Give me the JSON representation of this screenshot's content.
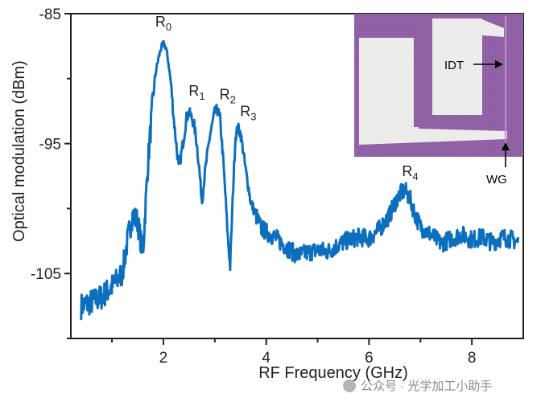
{
  "chart_data": {
    "type": "line",
    "title": "",
    "xlabel": "RF Frequency (GHz)",
    "ylabel": "Optical modulation (dBm)",
    "xlim": [
      0.2,
      9.0
    ],
    "ylim": [
      -110,
      -85
    ],
    "xticks": [
      2,
      4,
      6,
      8
    ],
    "xtick_labels": [
      "2",
      "4",
      "6",
      "8"
    ],
    "yticks": [
      -85,
      -95,
      -105
    ],
    "ytick_labels": [
      "-85",
      "-95",
      "-105"
    ],
    "series": [
      {
        "name": "Optical modulation",
        "color": "#0b6fbe",
        "x": [
          0.4,
          0.6,
          0.8,
          1.0,
          1.2,
          1.3,
          1.4,
          1.5,
          1.6,
          1.7,
          1.75,
          1.8,
          1.85,
          1.9,
          1.95,
          2.0,
          2.05,
          2.1,
          2.15,
          2.2,
          2.3,
          2.4,
          2.45,
          2.5,
          2.55,
          2.6,
          2.65,
          2.7,
          2.75,
          2.8,
          2.9,
          3.0,
          3.05,
          3.1,
          3.15,
          3.2,
          3.25,
          3.3,
          3.35,
          3.4,
          3.45,
          3.5,
          3.55,
          3.6,
          3.7,
          3.8,
          3.9,
          4.0,
          4.2,
          4.4,
          4.6,
          4.8,
          5.0,
          5.2,
          5.4,
          5.6,
          5.8,
          6.0,
          6.2,
          6.4,
          6.5,
          6.6,
          6.7,
          6.8,
          6.9,
          7.0,
          7.2,
          7.4,
          7.6,
          7.8,
          8.0,
          8.2,
          8.4,
          8.6,
          8.8,
          8.9
        ],
        "y": [
          -107.5,
          -107.2,
          -106.8,
          -106.0,
          -105.0,
          -102.5,
          -100.5,
          -101.0,
          -103.5,
          -96.5,
          -94.0,
          -91.5,
          -89.5,
          -88.5,
          -87.7,
          -87.3,
          -87.6,
          -88.8,
          -90.5,
          -93.0,
          -97.0,
          -94.5,
          -93.0,
          -92.6,
          -93.0,
          -93.6,
          -95.0,
          -97.0,
          -99.5,
          -97.5,
          -94.5,
          -92.6,
          -92.4,
          -93.0,
          -95.5,
          -98.5,
          -102.0,
          -104.5,
          -99.0,
          -94.5,
          -93.8,
          -94.2,
          -95.5,
          -97.0,
          -99.5,
          -100.5,
          -101.5,
          -101.8,
          -102.3,
          -103.0,
          -103.6,
          -103.4,
          -103.2,
          -103.3,
          -102.8,
          -102.4,
          -102.2,
          -102.3,
          -101.6,
          -100.5,
          -99.6,
          -98.9,
          -98.6,
          -99.3,
          -100.5,
          -101.4,
          -102.0,
          -102.7,
          -102.3,
          -102.0,
          -102.4,
          -102.2,
          -102.6,
          -102.2,
          -102.4,
          -102.6
        ]
      }
    ],
    "annotations": [
      {
        "base": "R",
        "sub": "0",
        "x": 2.0,
        "y": -86.0
      },
      {
        "base": "R",
        "sub": "1",
        "x": 2.65,
        "y": -91.3
      },
      {
        "base": "R",
        "sub": "2",
        "x": 3.25,
        "y": -91.6
      },
      {
        "base": "R",
        "sub": "3",
        "x": 3.65,
        "y": -92.9
      },
      {
        "base": "R",
        "sub": "4",
        "x": 6.8,
        "y": -97.5
      }
    ],
    "inset": {
      "description": "micrograph",
      "labels": [
        "IDT",
        "WG"
      ]
    }
  },
  "watermark": "公众号 · 光学加工小助手"
}
